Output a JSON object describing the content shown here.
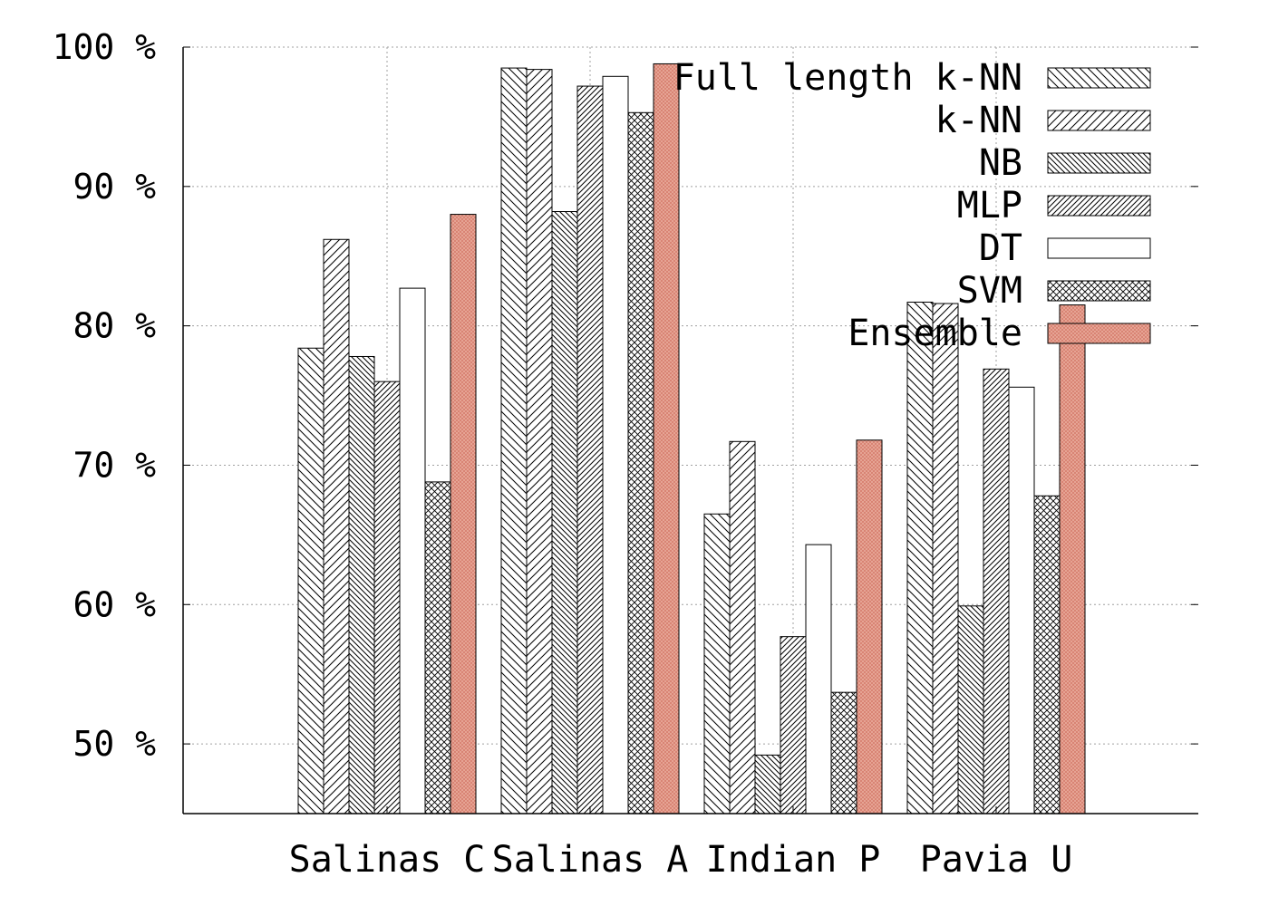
{
  "chart_data": {
    "type": "bar",
    "title": "",
    "xlabel": "",
    "ylabel": "",
    "ylim": [
      45,
      100
    ],
    "yticks": [
      50,
      60,
      70,
      80,
      90,
      100
    ],
    "ytick_labels": [
      "50 %",
      "60 %",
      "70 %",
      "80 %",
      "90 %",
      "100 %"
    ],
    "grid": true,
    "legend_position": "top-right",
    "categories": [
      "Salinas C",
      "Salinas A",
      "Indian P",
      "Pavia U"
    ],
    "series": [
      {
        "name": "Full length k-NN",
        "pattern": "diag-back",
        "values": [
          78.4,
          98.5,
          66.5,
          81.7
        ]
      },
      {
        "name": "k-NN",
        "pattern": "diag-fwd",
        "values": [
          86.2,
          98.4,
          71.7,
          81.6
        ]
      },
      {
        "name": "NB",
        "pattern": "diag-back-dense",
        "values": [
          77.8,
          88.2,
          49.2,
          59.9
        ]
      },
      {
        "name": "MLP",
        "pattern": "diag-fwd-dense",
        "values": [
          76.0,
          97.2,
          57.7,
          76.9
        ]
      },
      {
        "name": "DT",
        "pattern": "solid-white",
        "values": [
          82.7,
          97.9,
          64.3,
          75.6
        ]
      },
      {
        "name": "SVM",
        "pattern": "crosshatch",
        "values": [
          68.8,
          95.3,
          53.7,
          67.8
        ]
      },
      {
        "name": "Ensemble",
        "pattern": "salmon",
        "color": "#e8a898",
        "values": [
          88.0,
          98.8,
          71.8,
          81.5
        ]
      }
    ]
  }
}
